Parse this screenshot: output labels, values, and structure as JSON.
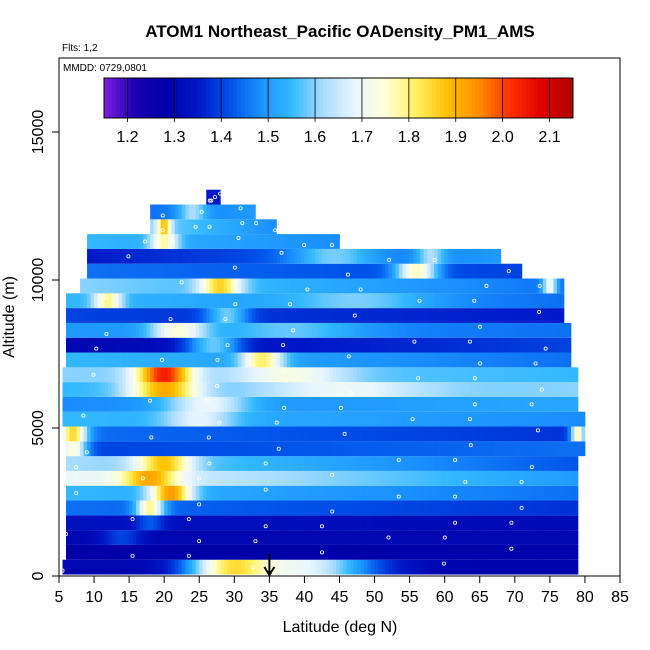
{
  "chart_data": {
    "type": "heatmap",
    "title": "ATOM1 Northeast_Pacific OADensity_PM1_AMS",
    "flights_label": "Flts: 1,2",
    "dates_label": "MMDD: 0729,0801",
    "xlabel": "Latitude (deg N)",
    "ylabel": "Altitude (m)",
    "xlim": [
      5,
      85
    ],
    "ylim": [
      0,
      17500
    ],
    "x_ticks": [
      5,
      10,
      15,
      20,
      25,
      30,
      35,
      40,
      45,
      50,
      55,
      60,
      65,
      70,
      75,
      80,
      85
    ],
    "y_ticks": [
      0,
      5000,
      10000,
      15000
    ],
    "colorbar": {
      "min": 1.15,
      "max": 2.15,
      "ticks": [
        1.2,
        1.3,
        1.4,
        1.5,
        1.6,
        1.7,
        1.8,
        1.9,
        2.0,
        2.1
      ],
      "tick_labels": [
        "1.2",
        "1.3",
        "1.4",
        "1.5",
        "1.6",
        "1.7",
        "1.8",
        "1.9",
        "2.0",
        "2.1"
      ],
      "colors": [
        "#7f1fe0",
        "#1a00b0",
        "#0000a8",
        "#0018c8",
        "#0050e8",
        "#1a90ff",
        "#33b8ff",
        "#a8dcff",
        "#e8f6ff",
        "#ffffd8",
        "#fff060",
        "#ffc000",
        "#ff8c00",
        "#ff3000",
        "#e00000",
        "#b00000"
      ]
    },
    "marker_latitude": 35,
    "rows": [
      {
        "alt": 300,
        "lat_start": 5.5,
        "lat_end": 79,
        "start": 1.3,
        "end": 1.29,
        "bumps": [
          {
            "c": 29,
            "w": 6,
            "a": 0.42
          },
          {
            "c": 40,
            "w": 10,
            "a": 0.38
          }
        ]
      },
      {
        "alt": 800,
        "lat_start": 6,
        "lat_end": 79,
        "start": 1.28,
        "end": 1.29,
        "bumps": []
      },
      {
        "alt": 1300,
        "lat_start": 6,
        "lat_end": 79,
        "start": 1.3,
        "end": 1.3,
        "bumps": [
          {
            "c": 14,
            "w": 3,
            "a": 0.1
          }
        ]
      },
      {
        "alt": 1800,
        "lat_start": 6,
        "lat_end": 79,
        "start": 1.33,
        "end": 1.31,
        "bumps": [
          {
            "c": 18,
            "w": 2,
            "a": 0.1
          }
        ]
      },
      {
        "alt": 2300,
        "lat_start": 6,
        "lat_end": 79,
        "start": 1.45,
        "end": 1.38,
        "bumps": [
          {
            "c": 18,
            "w": 2,
            "a": 0.35
          }
        ]
      },
      {
        "alt": 2800,
        "lat_start": 6,
        "lat_end": 79,
        "start": 1.55,
        "end": 1.45,
        "bumps": [
          {
            "c": 21,
            "w": 3,
            "a": 0.4
          }
        ]
      },
      {
        "alt": 3300,
        "lat_start": 6,
        "lat_end": 79,
        "start": 1.7,
        "end": 1.5,
        "bumps": [
          {
            "c": 18,
            "w": 4,
            "a": 0.25
          }
        ]
      },
      {
        "alt": 3800,
        "lat_start": 6,
        "lat_end": 79,
        "start": 1.62,
        "end": 1.42,
        "bumps": [
          {
            "c": 20,
            "w": 4,
            "a": 0.3
          }
        ]
      },
      {
        "alt": 4300,
        "lat_start": 6,
        "lat_end": 80,
        "start": 1.4,
        "end": 1.45,
        "bumps": [
          {
            "c": 7,
            "w": 2,
            "a": 0.35
          }
        ]
      },
      {
        "alt": 4800,
        "lat_start": 5.5,
        "lat_end": 80,
        "start": 1.45,
        "end": 1.38,
        "bumps": [
          {
            "c": 7,
            "w": 2,
            "a": 0.4
          },
          {
            "c": 79,
            "w": 1,
            "a": 0.4
          }
        ]
      },
      {
        "alt": 5300,
        "lat_start": 5.5,
        "lat_end": 80,
        "start": 1.55,
        "end": 1.48,
        "bumps": [
          {
            "c": 25,
            "w": 5,
            "a": 0.15
          }
        ]
      },
      {
        "alt": 5800,
        "lat_start": 5.5,
        "lat_end": 79,
        "start": 1.48,
        "end": 1.52,
        "bumps": [
          {
            "c": 26,
            "w": 6,
            "a": 0.2
          }
        ]
      },
      {
        "alt": 6300,
        "lat_start": 5.5,
        "lat_end": 79,
        "start": 1.55,
        "end": 1.6,
        "bumps": [
          {
            "c": 20,
            "w": 5,
            "a": 0.35
          },
          {
            "c": 45,
            "w": 12,
            "a": 0.12
          }
        ]
      },
      {
        "alt": 6800,
        "lat_start": 5.5,
        "lat_end": 79,
        "start": 1.6,
        "end": 1.55,
        "bumps": [
          {
            "c": 20,
            "w": 4,
            "a": 0.45
          },
          {
            "c": 38,
            "w": 8,
            "a": 0.15
          }
        ]
      },
      {
        "alt": 7300,
        "lat_start": 6,
        "lat_end": 78,
        "start": 1.55,
        "end": 1.45,
        "bumps": [
          {
            "c": 34,
            "w": 3,
            "a": 0.3
          }
        ]
      },
      {
        "alt": 7800,
        "lat_start": 6,
        "lat_end": 78,
        "start": 1.3,
        "end": 1.4,
        "bumps": [
          {
            "c": 27,
            "w": 4,
            "a": 0.25
          }
        ]
      },
      {
        "alt": 8300,
        "lat_start": 6,
        "lat_end": 78,
        "start": 1.5,
        "end": 1.45,
        "bumps": [
          {
            "c": 22,
            "w": 4,
            "a": 0.25
          },
          {
            "c": 38,
            "w": 10,
            "a": 0.1
          }
        ]
      },
      {
        "alt": 8800,
        "lat_start": 6,
        "lat_end": 77,
        "start": 1.4,
        "end": 1.35,
        "bumps": [
          {
            "c": 29,
            "w": 3,
            "a": 0.2
          }
        ]
      },
      {
        "alt": 9300,
        "lat_start": 6,
        "lat_end": 77,
        "start": 1.55,
        "end": 1.45,
        "bumps": [
          {
            "c": 12,
            "w": 2,
            "a": 0.25
          },
          {
            "c": 48,
            "w": 10,
            "a": 0.1
          }
        ]
      },
      {
        "alt": 9800,
        "lat_start": 8,
        "lat_end": 77,
        "start": 1.6,
        "end": 1.45,
        "bumps": [
          {
            "c": 28,
            "w": 3,
            "a": 0.3
          },
          {
            "c": 75,
            "w": 1,
            "a": 0.25
          }
        ]
      },
      {
        "alt": 10300,
        "lat_start": 9,
        "lat_end": 71,
        "start": 1.45,
        "end": 1.4,
        "bumps": [
          {
            "c": 56,
            "w": 3,
            "a": 0.35
          }
        ]
      },
      {
        "alt": 10800,
        "lat_start": 9,
        "lat_end": 68,
        "start": 1.35,
        "end": 1.5,
        "bumps": [
          {
            "c": 44,
            "w": 6,
            "a": 0.15
          },
          {
            "c": 58,
            "w": 2,
            "a": 0.15
          }
        ]
      },
      {
        "alt": 11300,
        "lat_start": 9,
        "lat_end": 45,
        "start": 1.55,
        "end": 1.48,
        "bumps": [
          {
            "c": 20,
            "w": 2,
            "a": 0.25
          }
        ]
      },
      {
        "alt": 11800,
        "lat_start": 18,
        "lat_end": 36,
        "start": 1.6,
        "end": 1.48,
        "bumps": [
          {
            "c": 20,
            "w": 1,
            "a": 0.3
          }
        ]
      },
      {
        "alt": 12300,
        "lat_start": 18,
        "lat_end": 33,
        "start": 1.45,
        "end": 1.5,
        "bumps": [
          {
            "c": 24,
            "w": 2,
            "a": 0.15
          }
        ]
      },
      {
        "alt": 12800,
        "lat_start": 26,
        "lat_end": 28,
        "start": 1.35,
        "end": 1.35,
        "bumps": []
      }
    ]
  }
}
